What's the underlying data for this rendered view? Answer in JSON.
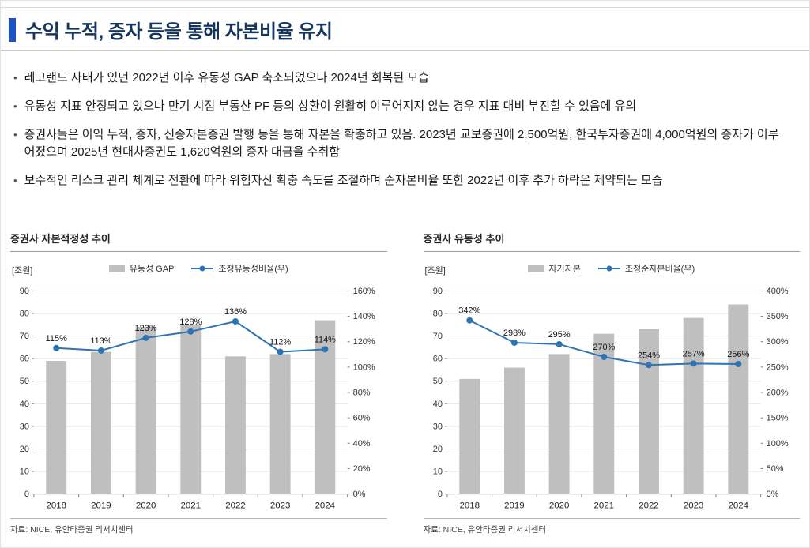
{
  "page": {
    "title": "수익 누적, 증자 등을 통해 자본비율 유지",
    "accent_color": "#1d52c2",
    "title_color": "#17365d",
    "bullets": [
      "레고랜드 사태가 있던 2022년 이후 유동성 GAP 축소되었으나 2024년 회복된 모습",
      "유동성 지표 안정되고 있으나 만기 시점 부동산 PF 등의 상환이 원활히 이루어지지 않는 경우 지표 대비 부진할 수 있음에 유의",
      "증권사들은 이익 누적, 증자, 신종자본증권 발행 등을 통해 자본을 확충하고 있음. 2023년 교보증권에 2,500억원, 한국투자증권에 4,000억원의 증자가 이루어졌으며 2025년 현대차증권도 1,620억원의 증자 대금을 수취함",
      "보수적인 리스크 관리 체계로 전환에 따라 위험자산 확충 속도를 조절하며 순자본비율 또한 2022년 이후 추가 하락은 제약되는 모습"
    ]
  },
  "chart_data": [
    {
      "type": "bar",
      "title": "증권사 자본적정성 추이",
      "unit_label": "[조원]",
      "categories": [
        "2018",
        "2019",
        "2020",
        "2021",
        "2022",
        "2023",
        "2024"
      ],
      "series": [
        {
          "name": "유동성 GAP",
          "kind": "bar",
          "axis": "left",
          "color": "#bfbfbf",
          "values": [
            59,
            63,
            74,
            75,
            61,
            62,
            77
          ]
        },
        {
          "name": "조정유동성비율(우)",
          "kind": "line",
          "axis": "right",
          "color": "#2e74b5",
          "values": [
            115,
            113,
            123,
            128,
            136,
            112,
            114
          ],
          "labels": [
            "115%",
            "113%",
            "123%",
            "128%",
            "136%",
            "112%",
            "114%"
          ]
        }
      ],
      "left_axis": {
        "min": 0,
        "max": 90,
        "step": 10
      },
      "right_axis": {
        "min": 0,
        "max": 160,
        "step": 20,
        "suffix": "%"
      },
      "legend_position": "top",
      "grid": true,
      "source": "자료: NICE, 유안타증권 리서치센터"
    },
    {
      "type": "bar",
      "title": "증권사 유동성 추이",
      "unit_label": "[조원]",
      "categories": [
        "2018",
        "2019",
        "2020",
        "2021",
        "2022",
        "2023",
        "2024"
      ],
      "series": [
        {
          "name": "자기자본",
          "kind": "bar",
          "axis": "left",
          "color": "#bfbfbf",
          "values": [
            51,
            56,
            62,
            71,
            73,
            78,
            84
          ]
        },
        {
          "name": "조정순자본비율(우)",
          "kind": "line",
          "axis": "right",
          "color": "#2e74b5",
          "values": [
            342,
            298,
            295,
            270,
            254,
            257,
            256
          ],
          "labels": [
            "342%",
            "298%",
            "295%",
            "270%",
            "254%",
            "257%",
            "256%"
          ]
        }
      ],
      "left_axis": {
        "min": 0,
        "max": 90,
        "step": 10
      },
      "right_axis": {
        "min": 0,
        "max": 400,
        "step": 50,
        "suffix": "%"
      },
      "legend_position": "top",
      "grid": true,
      "source": "자료: NICE, 유안타증권 리서치센터"
    }
  ]
}
